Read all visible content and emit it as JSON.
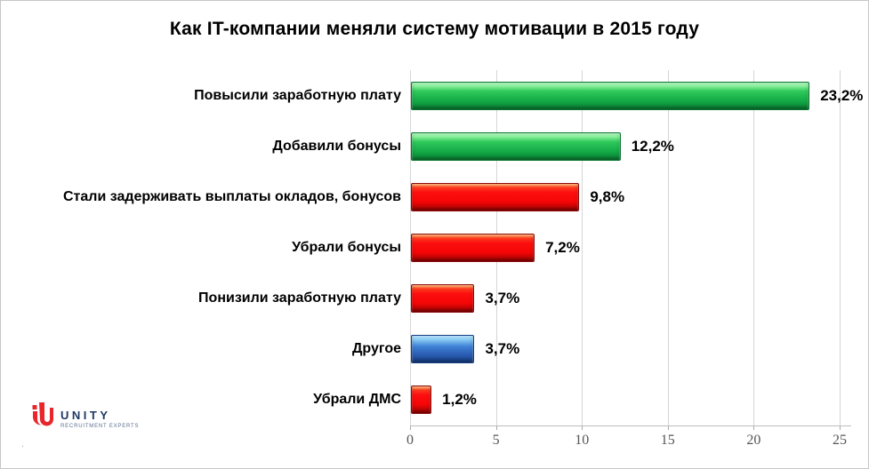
{
  "title": "Как  IT-компании меняли систему мотивации в 2015 году",
  "chart_data": {
    "type": "bar",
    "orientation": "horizontal",
    "title": "Как  IT-компании меняли систему мотивации в 2015 году",
    "categories": [
      "Повысили заработную плату",
      "Добавили бонусы",
      "Стали задерживать выплаты окладов,  бонусов",
      "Убрали бонусы",
      "Понизили заработную плату",
      "Другое",
      "Убрали ДМС"
    ],
    "values": [
      23.2,
      12.2,
      9.8,
      7.2,
      3.7,
      3.7,
      1.2
    ],
    "value_labels": [
      "23,2%",
      "12,2%",
      "9,8%",
      "7,2%",
      "3,7%",
      "3,7%",
      "1,2%"
    ],
    "bar_colors": [
      "green",
      "green",
      "red",
      "red",
      "red",
      "blue",
      "red"
    ],
    "xlabel": "",
    "ylabel": "",
    "xlim": [
      0,
      25
    ],
    "x_ticks": [
      0,
      5,
      10,
      15,
      20,
      25
    ],
    "x_tick_labels": [
      "0",
      "5",
      "10",
      "15",
      "20",
      "25"
    ],
    "grid": true,
    "legend": false
  },
  "colors": {
    "bar_green": "#1fb44e",
    "bar_red": "#fb0707",
    "bar_blue": "#2e64b8",
    "gridline": "#d6d6d6",
    "tick_text": "#555555",
    "label_text": "#000000"
  },
  "logo": {
    "name": "UNITY",
    "tagline": "RECRUITMENT EXPERTS"
  },
  "stray_dot": "."
}
